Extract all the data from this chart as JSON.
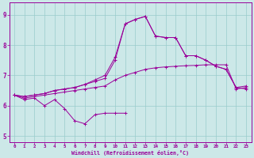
{
  "xlabel": "Windchill (Refroidissement éolien,°C)",
  "bg_color": "#cce8e8",
  "line_color": "#990099",
  "grid_color": "#99cccc",
  "xlim": [
    -0.5,
    23.5
  ],
  "ylim": [
    4.8,
    9.4
  ],
  "yticks": [
    5,
    6,
    7,
    8,
    9
  ],
  "xticks": [
    0,
    1,
    2,
    3,
    4,
    5,
    6,
    7,
    8,
    9,
    10,
    11,
    12,
    13,
    14,
    15,
    16,
    17,
    18,
    19,
    20,
    21,
    22,
    23
  ],
  "series": [
    {
      "x": [
        0,
        1,
        2,
        3,
        4,
        5,
        6,
        7,
        8,
        9,
        10,
        11
      ],
      "y": [
        6.35,
        6.2,
        6.25,
        6.0,
        6.2,
        5.9,
        5.5,
        5.4,
        5.7,
        5.75,
        5.75,
        5.75
      ]
    },
    {
      "x": [
        0,
        1,
        2,
        3,
        4,
        5,
        6,
        7,
        8,
        9,
        10,
        11,
        12,
        13,
        14,
        15,
        16,
        17,
        18,
        19,
        20,
        21,
        22,
        23
      ],
      "y": [
        6.35,
        6.25,
        6.3,
        6.35,
        6.4,
        6.45,
        6.5,
        6.55,
        6.6,
        6.65,
        6.85,
        7.0,
        7.1,
        7.2,
        7.25,
        7.28,
        7.3,
        7.32,
        7.33,
        7.35,
        7.35,
        7.35,
        6.55,
        6.6
      ]
    },
    {
      "x": [
        0,
        1,
        2,
        3,
        4,
        5,
        6,
        7,
        8,
        9,
        10,
        11,
        12,
        13,
        14,
        15,
        16,
        17,
        18,
        19,
        20,
        21,
        22,
        23
      ],
      "y": [
        6.35,
        6.3,
        6.35,
        6.4,
        6.5,
        6.55,
        6.6,
        6.7,
        6.8,
        6.9,
        7.5,
        8.7,
        8.85,
        8.95,
        8.3,
        8.25,
        8.25,
        7.65,
        7.65,
        7.5,
        7.3,
        7.2,
        6.6,
        6.55
      ]
    },
    {
      "x": [
        0,
        1,
        2,
        3,
        4,
        5,
        6,
        7,
        8,
        9,
        10,
        11,
        12,
        13,
        14,
        15,
        16,
        17,
        18,
        19,
        20,
        21,
        22,
        23
      ],
      "y": [
        6.35,
        6.3,
        6.35,
        6.4,
        6.5,
        6.55,
        6.6,
        6.7,
        6.85,
        7.0,
        7.6,
        8.7,
        8.85,
        8.95,
        8.3,
        8.25,
        8.25,
        7.65,
        7.65,
        7.5,
        7.3,
        7.2,
        6.6,
        6.65
      ]
    }
  ]
}
